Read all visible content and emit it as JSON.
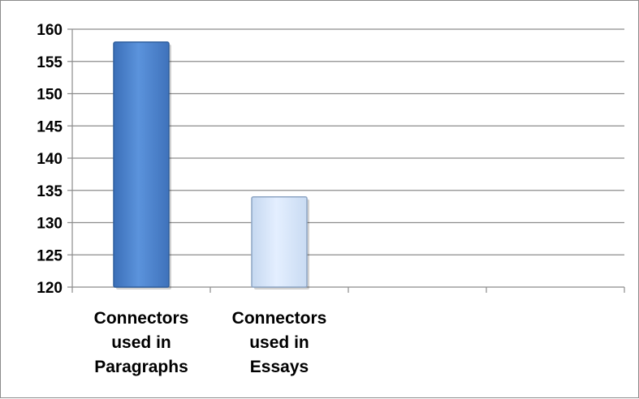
{
  "chart_data": {
    "type": "bar",
    "title": "",
    "xlabel": "",
    "ylabel": "",
    "categories": [
      [
        "Connectors",
        "used in",
        "Paragraphs"
      ],
      [
        "Connectors",
        "used in",
        "Essays"
      ],
      [],
      []
    ],
    "values": [
      158,
      134,
      null,
      null
    ],
    "ylim": [
      120,
      160
    ],
    "ytick_step": 5,
    "grid": true,
    "legend": "none",
    "colors": {
      "bars": [
        "#4f86d4",
        "#d6e6fa"
      ],
      "bar_edges": [
        "#2f5f9e",
        "#8ea6c4"
      ],
      "gridline": "#8c8c8c",
      "axis": "#8c8c8c"
    }
  }
}
